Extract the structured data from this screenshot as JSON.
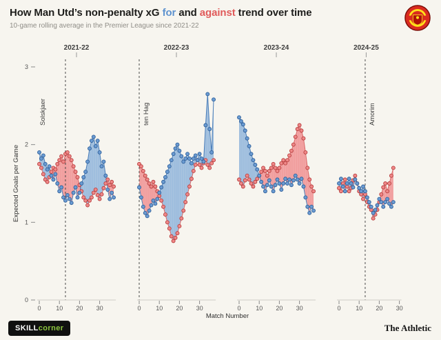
{
  "header": {
    "title_pre": "How Man Utd’s non-penalty xG ",
    "title_for": "for",
    "title_mid": " and ",
    "title_against": "against",
    "title_post": " trend over time",
    "subtitle": "10-game rolling average in the Premier League since 2021-22"
  },
  "footer": {
    "skill": "SKILL",
    "corner": "corner",
    "athletic": "The Athletic"
  },
  "colors": {
    "background": "#f7f5ef",
    "title_for_accent": "#5d92cf",
    "title_against_accent": "#e05a5a",
    "for_dot": "#6b9bd2",
    "for_stroke": "#2e5f99",
    "for_line": "#4a7db8",
    "fill_for": "#9fbede",
    "against_dot": "#ef8888",
    "against_stroke": "#b63c3c",
    "against_line": "#d96666",
    "fill_against": "#f19f9f",
    "manager_line": "#4a4a4a"
  },
  "chart_data": {
    "type": "line",
    "title": "How Man Utd’s non-penalty xG for and against trend over time",
    "subtitle": "10-game rolling average in the Premier League since 2021-22",
    "xlabel": "Match Number",
    "ylabel": "Expected Goals per Game",
    "ylim": [
      0,
      3
    ],
    "yticks": [
      0,
      1,
      2,
      3
    ],
    "xticks": [
      0,
      10,
      20,
      30
    ],
    "rolling_window": 10,
    "legend": [
      {
        "name": "xG for",
        "color": "#6b9bd2"
      },
      {
        "name": "xG against",
        "color": "#ef8888"
      }
    ],
    "panels": [
      {
        "season": "2021-22",
        "managers": [
          {
            "name": "Solskjaer",
            "match": 13,
            "label_side": "left"
          }
        ],
        "xg_for": [
          1.9,
          1.82,
          1.86,
          1.75,
          1.68,
          1.72,
          1.6,
          1.55,
          1.62,
          1.5,
          1.4,
          1.45,
          1.32,
          1.28,
          1.35,
          1.3,
          1.25,
          1.38,
          1.45,
          1.32,
          1.38,
          1.5,
          1.58,
          1.65,
          1.78,
          1.95,
          2.05,
          2.1,
          1.98,
          2.05,
          1.9,
          1.72,
          1.78,
          1.6,
          1.42,
          1.3,
          1.38,
          1.32
        ],
        "xg_against": [
          1.75,
          1.7,
          1.62,
          1.55,
          1.52,
          1.58,
          1.65,
          1.7,
          1.68,
          1.75,
          1.8,
          1.85,
          1.78,
          1.88,
          1.9,
          1.85,
          1.8,
          1.72,
          1.65,
          1.58,
          1.48,
          1.4,
          1.32,
          1.28,
          1.22,
          1.28,
          1.32,
          1.38,
          1.42,
          1.35,
          1.3,
          1.36,
          1.44,
          1.5,
          1.55,
          1.48,
          1.52,
          1.46
        ]
      },
      {
        "season": "2022-23",
        "managers": [
          {
            "name": "ten Hag",
            "match": 0,
            "label_side": "right"
          }
        ],
        "xg_for": [
          1.45,
          1.32,
          1.2,
          1.12,
          1.08,
          1.15,
          1.22,
          1.28,
          1.24,
          1.3,
          1.38,
          1.45,
          1.52,
          1.58,
          1.65,
          1.72,
          1.8,
          1.88,
          1.95,
          2.0,
          1.92,
          1.85,
          1.78,
          1.82,
          1.88,
          1.82,
          1.76,
          1.82,
          1.86,
          1.8,
          1.88,
          1.82,
          1.78,
          2.25,
          2.65,
          2.2,
          1.9,
          2.58
        ],
        "xg_against": [
          1.75,
          1.72,
          1.66,
          1.6,
          1.55,
          1.5,
          1.46,
          1.52,
          1.46,
          1.4,
          1.34,
          1.28,
          1.2,
          1.1,
          1.0,
          0.92,
          0.82,
          0.76,
          0.8,
          0.86,
          0.95,
          1.05,
          1.15,
          1.26,
          1.36,
          1.46,
          1.56,
          1.66,
          1.74,
          1.8,
          1.74,
          1.7,
          1.76,
          1.8,
          1.74,
          1.7,
          1.76,
          1.8
        ]
      },
      {
        "season": "2023-24",
        "managers": [],
        "xg_for": [
          2.35,
          2.3,
          2.26,
          2.18,
          2.08,
          1.98,
          1.88,
          1.8,
          1.74,
          1.68,
          1.6,
          1.52,
          1.46,
          1.4,
          1.48,
          1.54,
          1.46,
          1.4,
          1.48,
          1.55,
          1.5,
          1.42,
          1.5,
          1.56,
          1.5,
          1.55,
          1.48,
          1.54,
          1.6,
          1.55,
          1.5,
          1.56,
          1.46,
          1.32,
          1.2,
          1.12,
          1.2,
          1.15
        ],
        "xg_against": [
          1.55,
          1.5,
          1.46,
          1.54,
          1.6,
          1.55,
          1.5,
          1.46,
          1.52,
          1.56,
          1.6,
          1.65,
          1.7,
          1.66,
          1.6,
          1.66,
          1.7,
          1.75,
          1.7,
          1.66,
          1.7,
          1.76,
          1.8,
          1.76,
          1.8,
          1.86,
          1.92,
          2.0,
          2.1,
          2.2,
          2.25,
          2.18,
          2.08,
          1.9,
          1.7,
          1.55,
          1.46,
          1.4
        ]
      },
      {
        "season": "2024-25",
        "managers": [
          {
            "name": "Amorim",
            "match": 13,
            "label_side": "right"
          }
        ],
        "xg_for": [
          1.5,
          1.56,
          1.46,
          1.4,
          1.5,
          1.56,
          1.5,
          1.45,
          1.55,
          1.5,
          1.44,
          1.4,
          1.46,
          1.4,
          1.32,
          1.26,
          1.2,
          1.12,
          1.16,
          1.22,
          1.3,
          1.26,
          1.2,
          1.26,
          1.3,
          1.24,
          1.2,
          1.26
        ],
        "xg_against": [
          1.44,
          1.4,
          1.5,
          1.55,
          1.46,
          1.4,
          1.44,
          1.54,
          1.6,
          1.5,
          1.4,
          1.36,
          1.3,
          1.36,
          1.26,
          1.2,
          1.16,
          1.05,
          1.1,
          1.16,
          1.26,
          1.36,
          1.45,
          1.5,
          1.4,
          1.5,
          1.6,
          1.7
        ]
      }
    ]
  }
}
